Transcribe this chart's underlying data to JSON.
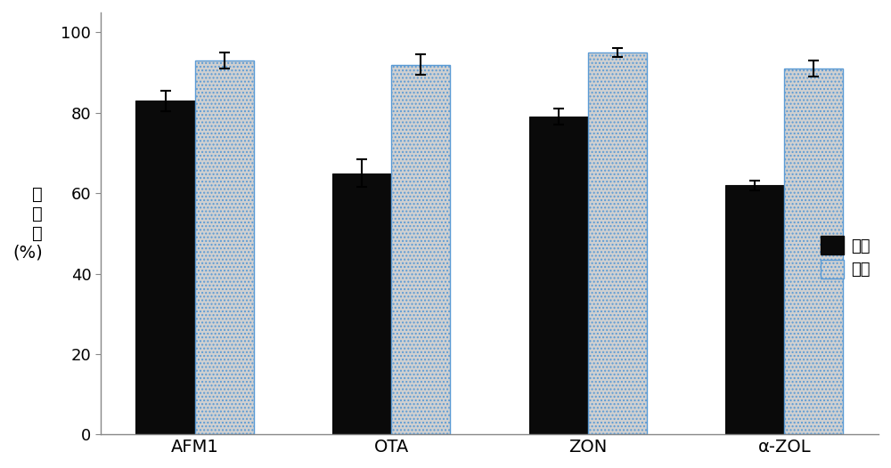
{
  "categories": [
    "AFM1",
    "OTA",
    "ZON",
    "α-ZOL"
  ],
  "black_values": [
    83,
    65,
    79,
    62
  ],
  "gray_values": [
    93,
    92,
    95,
    91
  ],
  "black_errors": [
    2.5,
    3.5,
    2.0,
    1.2
  ],
  "gray_errors": [
    2.0,
    2.5,
    1.2,
    2.0
  ],
  "black_color": "#0a0a0a",
  "gray_color": "#d0d0d0",
  "gray_edge_color": "#5b9bd5",
  "gray_hatch": "....",
  "ylim": [
    0,
    105
  ],
  "yticks": [
    0,
    20,
    40,
    60,
    80,
    100
  ],
  "bar_width": 0.3,
  "legend_black": "甲醇",
  "legend_gray": "乙腔",
  "figure_width": 10.0,
  "figure_height": 5.26,
  "dpi": 100
}
